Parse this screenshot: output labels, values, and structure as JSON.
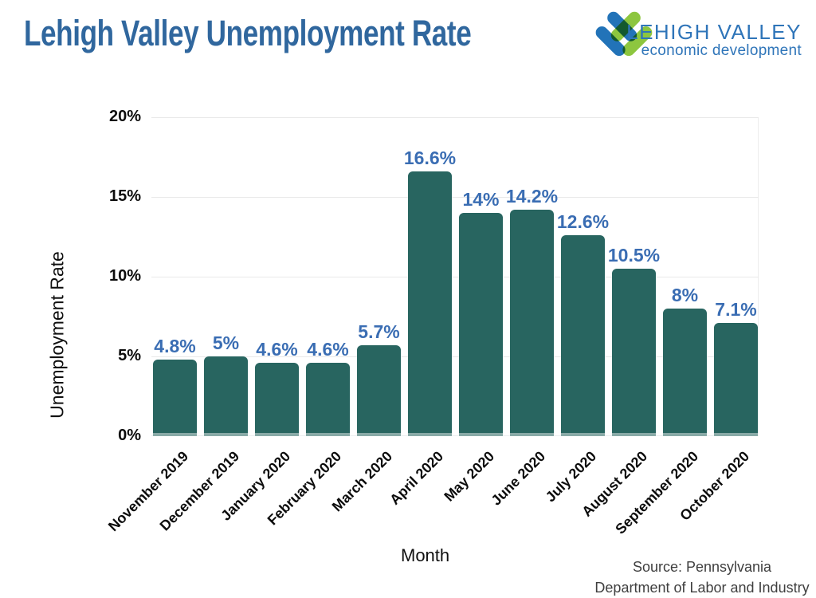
{
  "header": {
    "title": "Lehigh Valley Unemployment Rate",
    "title_color": "#30679e",
    "logo": {
      "brand": "LEHIGH VALLEY",
      "tagline": "economic development",
      "text_color": "#2f75b9",
      "mark_blue": "#2273b8",
      "mark_green": "#8dc63f"
    }
  },
  "chart_data": {
    "type": "bar",
    "title": "Lehigh Valley Unemployment Rate",
    "xlabel": "Month",
    "ylabel": "Unemployment Rate",
    "categories": [
      "November 2019",
      "December 2019",
      "January 2020",
      "February 2020",
      "March 2020",
      "April 2020",
      "May 2020",
      "June 2020",
      "July 2020",
      "August 2020",
      "September 2020",
      "October 2020"
    ],
    "values": [
      4.8,
      5,
      4.6,
      4.6,
      5.7,
      16.6,
      14,
      14.2,
      12.6,
      10.5,
      8,
      7.1
    ],
    "bar_labels": [
      "4.8%",
      "5%",
      "4.6%",
      "4.6%",
      "5.7%",
      "16.6%",
      "14%",
      "14.2%",
      "12.6%",
      "10.5%",
      "8%",
      "7.1%"
    ],
    "ylim": [
      0,
      20
    ],
    "ytick_values": [
      0,
      5,
      10,
      15,
      20
    ],
    "ytick_labels": [
      "0%",
      "5%",
      "10%",
      "15%",
      "20%"
    ],
    "grid": "horizontal",
    "legend": "none",
    "bar_color": "#286560",
    "value_label_color": "#3a6db3"
  },
  "footer": {
    "source_line1": "Source: Pennsylvania",
    "source_line2": "Department of Labor and Industry"
  }
}
